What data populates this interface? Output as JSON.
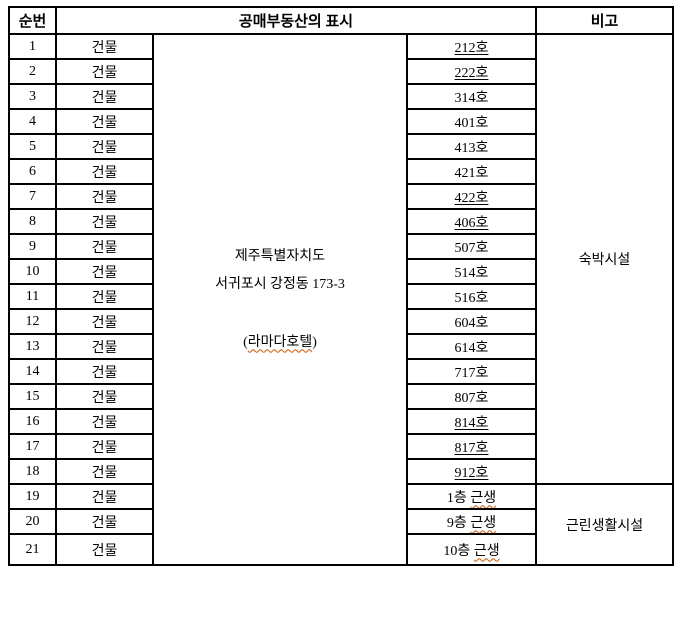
{
  "page": {
    "background": "#ffffff"
  },
  "colors": {
    "border": "#000000",
    "text": "#000000",
    "squiggle": "#cc5500",
    "background": "#ffffff"
  },
  "table": {
    "headers": {
      "seq": "순번",
      "property": "공매부동산의 표시",
      "remarks": "비고"
    },
    "address": {
      "line1": "제주특별자치도",
      "line2": "서귀포시 강정동 173-3",
      "paren_open": "(",
      "hotel_name": "라마다호텔",
      "paren_close": ")"
    },
    "remark_groups": [
      {
        "label": "숙박시설",
        "from": 1,
        "to": 18
      },
      {
        "label": "근린생활시설",
        "from": 19,
        "to": 21
      }
    ],
    "rows": [
      {
        "no": "1",
        "type": "건물",
        "unit": "212호",
        "underline": true,
        "wavy": ""
      },
      {
        "no": "2",
        "type": "건물",
        "unit": "222호",
        "underline": true,
        "wavy": ""
      },
      {
        "no": "3",
        "type": "건물",
        "unit": "314호",
        "underline": false,
        "wavy": ""
      },
      {
        "no": "4",
        "type": "건물",
        "unit": "401호",
        "underline": false,
        "wavy": ""
      },
      {
        "no": "5",
        "type": "건물",
        "unit": "413호",
        "underline": false,
        "wavy": ""
      },
      {
        "no": "6",
        "type": "건물",
        "unit": "421호",
        "underline": false,
        "wavy": ""
      },
      {
        "no": "7",
        "type": "건물",
        "unit": "422호",
        "underline": true,
        "wavy": ""
      },
      {
        "no": "8",
        "type": "건물",
        "unit": "406호",
        "underline": true,
        "wavy": ""
      },
      {
        "no": "9",
        "type": "건물",
        "unit": "507호",
        "underline": false,
        "wavy": ""
      },
      {
        "no": "10",
        "type": "건물",
        "unit": "514호",
        "underline": false,
        "wavy": ""
      },
      {
        "no": "11",
        "type": "건물",
        "unit": "516호",
        "underline": false,
        "wavy": ""
      },
      {
        "no": "12",
        "type": "건물",
        "unit": "604호",
        "underline": false,
        "wavy": ""
      },
      {
        "no": "13",
        "type": "건물",
        "unit": "614호",
        "underline": false,
        "wavy": ""
      },
      {
        "no": "14",
        "type": "건물",
        "unit": "717호",
        "underline": false,
        "wavy": ""
      },
      {
        "no": "15",
        "type": "건물",
        "unit": "807호",
        "underline": false,
        "wavy": ""
      },
      {
        "no": "16",
        "type": "건물",
        "unit": "814호",
        "underline": true,
        "wavy": ""
      },
      {
        "no": "17",
        "type": "건물",
        "unit": "817호",
        "underline": true,
        "wavy": ""
      },
      {
        "no": "18",
        "type": "건물",
        "unit": "912호",
        "underline": true,
        "wavy": ""
      },
      {
        "no": "19",
        "type": "건물",
        "unit": "1층 ",
        "underline": false,
        "wavy": "근생"
      },
      {
        "no": "20",
        "type": "건물",
        "unit": "9층 ",
        "underline": false,
        "wavy": "근생"
      },
      {
        "no": "21",
        "type": "건물",
        "unit": "10층 ",
        "underline": false,
        "wavy": "근생"
      }
    ]
  }
}
